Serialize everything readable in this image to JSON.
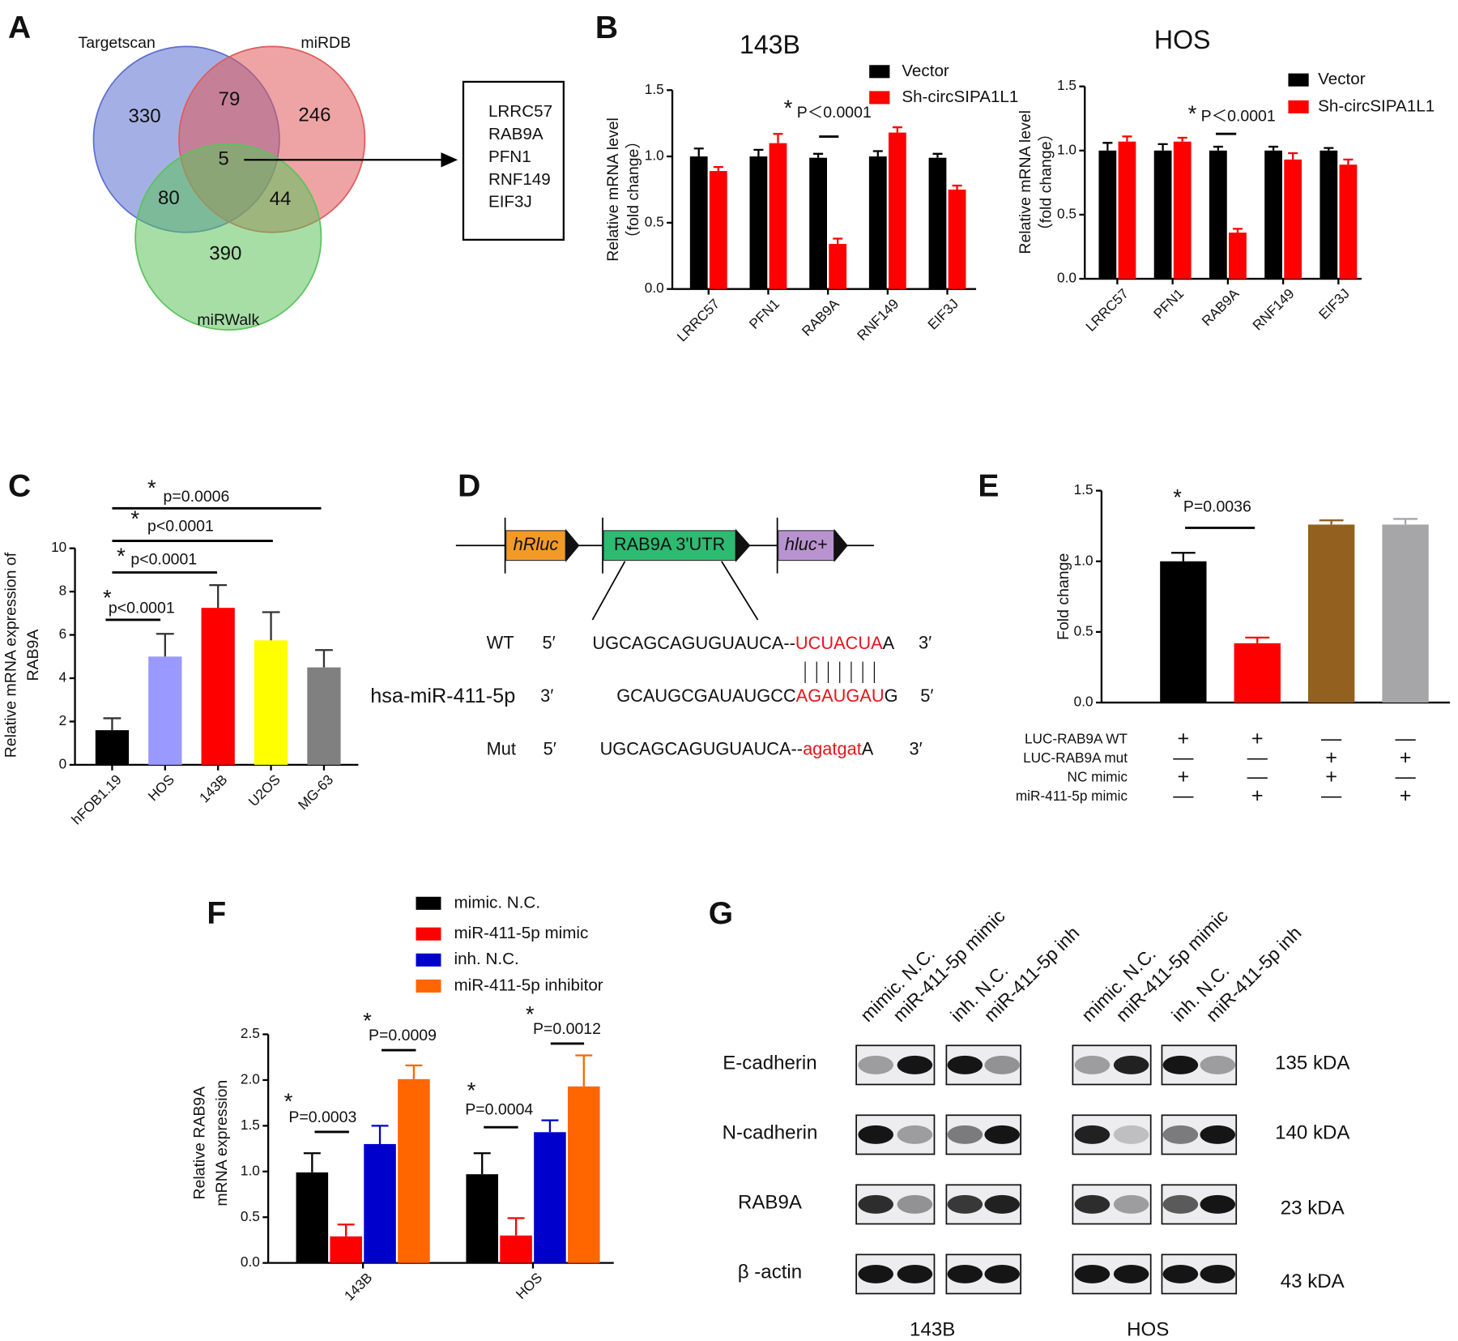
{
  "panel_letters": [
    "A",
    "B",
    "C",
    "D",
    "E",
    "F",
    "G"
  ],
  "venn": {
    "sets": [
      {
        "name": "Targetscan",
        "color": "#5a6fd0"
      },
      {
        "name": "miRDB",
        "color": "#e05a5a"
      },
      {
        "name": "miRWalk",
        "color": "#5cc25c"
      }
    ],
    "regions": [
      330,
      246,
      390,
      79,
      80,
      44,
      5
    ],
    "genes": [
      "LRRC57",
      "RAB9A",
      "PFN1",
      "RNF149",
      "EIF3J"
    ]
  },
  "chart_data": [
    {
      "type": "bar",
      "title": "143B",
      "ylabel": [
        "Relative mRNA level",
        "（fold change）"
      ],
      "categories": [
        "LRRC57",
        "PFN1",
        "RAB9A",
        "RNF149",
        "EIF3J"
      ],
      "series": [
        {
          "name": "Vector",
          "color": "#000000",
          "values": [
            1.0,
            1.0,
            0.99,
            1.0,
            0.99
          ],
          "errors": [
            0.06,
            0.05,
            0.03,
            0.04,
            0.03
          ]
        },
        {
          "name": "Sh-circSIPA1L1",
          "color": "#ff0000",
          "values": [
            0.89,
            1.1,
            0.34,
            1.18,
            0.75
          ],
          "errors": [
            0.03,
            0.07,
            0.04,
            0.04,
            0.03
          ]
        }
      ],
      "ylim": [
        0,
        1.5
      ],
      "yticks": [
        {
          "value": 0,
          "label": "0.0"
        },
        {
          "value": 0.5,
          "label": "0.5"
        },
        {
          "value": 1,
          "label": "1.0"
        },
        {
          "value": 1.5,
          "label": "1.5"
        }
      ],
      "annotations": [
        {
          "mark": "*",
          "text": "P＜0.0001"
        }
      ]
    },
    {
      "type": "bar",
      "title": "HOS",
      "ylabel": [
        "Relative mRNA level",
        "（fold change）"
      ],
      "categories": [
        "LRRC57",
        "PFN1",
        "RAB9A",
        "RNF149",
        "EIF3J"
      ],
      "series": [
        {
          "name": "Vector",
          "color": "#000000",
          "values": [
            1.0,
            1.0,
            1.0,
            1.0,
            1.0
          ],
          "errors": [
            0.06,
            0.05,
            0.03,
            0.03,
            0.02
          ]
        },
        {
          "name": "Sh-circSIPA1L1",
          "color": "#ff0000",
          "values": [
            1.07,
            1.07,
            0.36,
            0.93,
            0.89
          ],
          "errors": [
            0.04,
            0.03,
            0.03,
            0.05,
            0.04
          ]
        }
      ],
      "ylim": [
        0,
        1.5
      ],
      "yticks": [
        {
          "value": 0,
          "label": "0.0"
        },
        {
          "value": 0.5,
          "label": "0.5"
        },
        {
          "value": 1,
          "label": "1.0"
        },
        {
          "value": 1.5,
          "label": "1.5"
        }
      ],
      "annotations": [
        {
          "mark": "*",
          "text": "P＜0.0001"
        }
      ]
    },
    {
      "type": "bar",
      "ylabel": [
        "Relative mRNA expression  of",
        "RAB9A"
      ],
      "categories": [
        "hFOB1.19",
        "HOS",
        "143B",
        "U2OS",
        "MG-63"
      ],
      "values": [
        1.6,
        5.0,
        7.25,
        5.75,
        4.5
      ],
      "errors": [
        0.55,
        1.05,
        1.05,
        1.3,
        0.8
      ],
      "colors": [
        "#000000",
        "#9999ff",
        "#ff0000",
        "#ffff00",
        "#808080"
      ],
      "ylim": [
        0,
        10
      ],
      "yticks": [
        0,
        2,
        4,
        6,
        8,
        10
      ],
      "annotations": [
        {
          "mark": "*",
          "text": "p<0.0001"
        },
        {
          "mark": "*",
          "text": "p<0.0001"
        },
        {
          "mark": "*",
          "text": "p<0.0001"
        },
        {
          "mark": "*",
          "text": "p=0.0006"
        }
      ]
    },
    {
      "type": "bar",
      "ylabel": [
        "Fold change"
      ],
      "categories": [
        null,
        null,
        null,
        null
      ],
      "values": [
        1.0,
        0.42,
        1.26,
        1.26
      ],
      "errors": [
        0.06,
        0.04,
        0.03,
        0.04
      ],
      "colors": [
        "#000000",
        "#ff0000",
        "#93601f",
        "#a6a6a8"
      ],
      "ylim": [
        0,
        1.5
      ],
      "yticks": [
        {
          "value": 0,
          "label": "0.0"
        },
        {
          "value": 0.5,
          "label": "0.5"
        },
        {
          "value": 1,
          "label": "1.0"
        },
        {
          "value": 1.5,
          "label": "1.5"
        }
      ],
      "annotations": [
        {
          "mark": "*",
          "text": "P=0.0036"
        }
      ],
      "conditions": [
        {
          "label": "LUC-RAB9A  WT",
          "signs": [
            "+",
            "+",
            "—",
            "—"
          ]
        },
        {
          "label": "LUC-RAB9A   mut",
          "signs": [
            "—",
            "—",
            "+",
            "+"
          ]
        },
        {
          "label": "NC mimic",
          "signs": [
            "+",
            "—",
            "+",
            "—"
          ]
        },
        {
          "label": "miR-411-5p mimic",
          "signs": [
            "—",
            "+",
            "—",
            "+"
          ]
        }
      ]
    },
    {
      "type": "bar",
      "ylabel": [
        "Relative RAB9A",
        "mRNA expression"
      ],
      "categories": [
        "143B",
        "HOS"
      ],
      "series": [
        {
          "name": "mimic. N.C.",
          "color": "#000000",
          "values": [
            0.99,
            0.97
          ],
          "errors": [
            0.21,
            0.23
          ]
        },
        {
          "name": "miR-411-5p mimic",
          "color": "#ff0000",
          "values": [
            0.29,
            0.3
          ],
          "errors": [
            0.13,
            0.19
          ]
        },
        {
          "name": "inh. N.C.",
          "color": "#0000cc",
          "values": [
            1.3,
            1.43
          ],
          "errors": [
            0.2,
            0.13
          ]
        },
        {
          "name": "miR-411-5p inhibitor",
          "color": "#ff6600",
          "values": [
            2.01,
            1.93
          ],
          "errors": [
            0.15,
            0.34
          ]
        }
      ],
      "ylim": [
        0,
        2.5
      ],
      "yticks": [
        {
          "value": 0,
          "label": "0.0"
        },
        {
          "value": 0.5,
          "label": "0.5"
        },
        {
          "value": 1,
          "label": "1.0"
        },
        {
          "value": 1.5,
          "label": "1.5"
        },
        {
          "value": 2,
          "label": "2.0"
        },
        {
          "value": 2.5,
          "label": "2.5"
        }
      ],
      "annotations": [
        {
          "mark": "*",
          "text": "P=0.0003"
        },
        {
          "mark": "*",
          "text": "P=0.0009"
        },
        {
          "mark": "*",
          "text": "P=0.0004"
        },
        {
          "mark": "*",
          "text": "P=0.0012"
        }
      ]
    }
  ],
  "construct": {
    "elements": [
      "hRluc",
      "RAB9A  3'UTR",
      "hluc+"
    ],
    "sequences": [
      {
        "label": "WT",
        "left": "5′",
        "parts": [
          "UGCAGCAGUGUAUCA--",
          "UCUACUA",
          "A"
        ],
        "right": "3′"
      },
      {
        "label": "hsa-miR-411-5p",
        "left": "3′",
        "parts": [
          "GCAUGCGAUAUGCC",
          "AGAUGAU",
          "G"
        ],
        "right": "5′"
      },
      {
        "label": "Mut",
        "left": "5′",
        "parts": [
          "UGCAGCAGUGUAUCA--",
          "agatgat",
          "A"
        ],
        "right": "3′"
      }
    ]
  },
  "blot": {
    "lanes": [
      "mimic. N.C.",
      "miR-411-5p mimic",
      "inh. N.C.",
      "miR-411-5p inh"
    ],
    "groups": [
      "143B",
      "HOS"
    ],
    "proteins": [
      {
        "name": "E-cadherin",
        "size": "135 kDA"
      },
      {
        "name": "N-cadherin",
        "size": "140 kDA"
      },
      {
        "name": "RAB9A",
        "size": "23 kDA"
      },
      {
        "name": "β -actin",
        "size": "43 kDA"
      }
    ]
  }
}
